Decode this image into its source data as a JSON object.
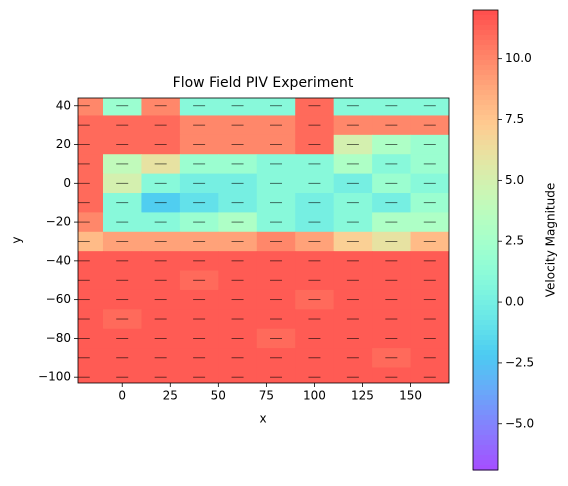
{
  "chart_data": {
    "type": "heatmap",
    "title": "Flow Field PIV Experiment",
    "x_label": "x",
    "y_label": "y",
    "colorbar_label": "Velocity Magnitude",
    "colormap": "rainbow",
    "x": [
      -20,
      0,
      20,
      40,
      60,
      80,
      100,
      120,
      140,
      160
    ],
    "y": [
      40,
      30,
      20,
      10,
      0,
      -10,
      -20,
      -30,
      -40,
      -50,
      -60,
      -70,
      -80,
      -90,
      -100
    ],
    "z": [
      [
        10,
        2,
        10,
        1,
        1,
        1,
        11,
        1,
        1,
        1
      ],
      [
        11,
        11,
        11,
        10,
        10,
        10,
        11,
        10,
        10,
        10
      ],
      [
        11,
        11,
        11,
        10,
        10,
        10,
        11,
        5,
        3,
        2
      ],
      [
        11,
        4,
        6,
        2,
        2,
        1,
        1,
        3,
        1,
        2
      ],
      [
        11,
        5,
        1,
        0,
        0,
        1,
        1,
        0,
        2,
        1
      ],
      [
        11,
        1,
        -2,
        -1,
        0,
        1,
        0,
        1,
        0,
        2
      ],
      [
        10,
        1,
        1,
        2,
        3,
        1,
        0,
        1,
        3,
        3
      ],
      [
        8,
        9,
        9,
        9,
        9,
        10,
        9,
        7,
        6,
        8
      ],
      [
        11.5,
        11.5,
        11.5,
        11.5,
        11.5,
        11.5,
        11.5,
        11.5,
        11.5,
        11.5
      ],
      [
        11.5,
        11.5,
        11.5,
        11,
        11.5,
        11.5,
        11.5,
        11.5,
        11.5,
        11.5
      ],
      [
        11.5,
        11.5,
        11.5,
        11.5,
        11.5,
        11.5,
        11,
        11.5,
        11.5,
        11.5
      ],
      [
        11.5,
        11,
        11.5,
        11.5,
        11.5,
        11.5,
        11.5,
        11.5,
        11.5,
        11.5
      ],
      [
        11.5,
        11.5,
        11.5,
        11.5,
        11.5,
        11,
        11.5,
        11.5,
        11.5,
        11.5
      ],
      [
        11.5,
        11.5,
        11.5,
        11.5,
        11.5,
        11.5,
        11.5,
        11.5,
        11,
        11.5
      ],
      [
        11.5,
        11.5,
        11.5,
        11.5,
        11.5,
        11.5,
        11.5,
        11.5,
        11.5,
        11.5
      ]
    ],
    "xlim": [
      -23,
      170
    ],
    "ylim": [
      -103,
      44
    ],
    "clim": [
      -6.9,
      12
    ],
    "xticks": [
      0,
      25,
      50,
      75,
      100,
      125,
      150
    ],
    "yticks": [
      {
        "value": -100,
        "label": "−100"
      },
      {
        "value": -80,
        "label": "−80"
      },
      {
        "value": -60,
        "label": "−60"
      },
      {
        "value": -40,
        "label": "−40"
      },
      {
        "value": -20,
        "label": "−20"
      },
      0,
      20,
      40
    ],
    "cticks": [
      {
        "value": -5,
        "label": "−5.0"
      },
      {
        "value": -2.5,
        "label": "−2.5"
      },
      {
        "value": 0,
        "label": "0.0"
      },
      {
        "value": 2.5,
        "label": "2.5"
      },
      {
        "value": 5,
        "label": "5.0"
      },
      {
        "value": 7.5,
        "label": "7.5"
      },
      {
        "value": 10,
        "label": "10.0"
      }
    ]
  }
}
